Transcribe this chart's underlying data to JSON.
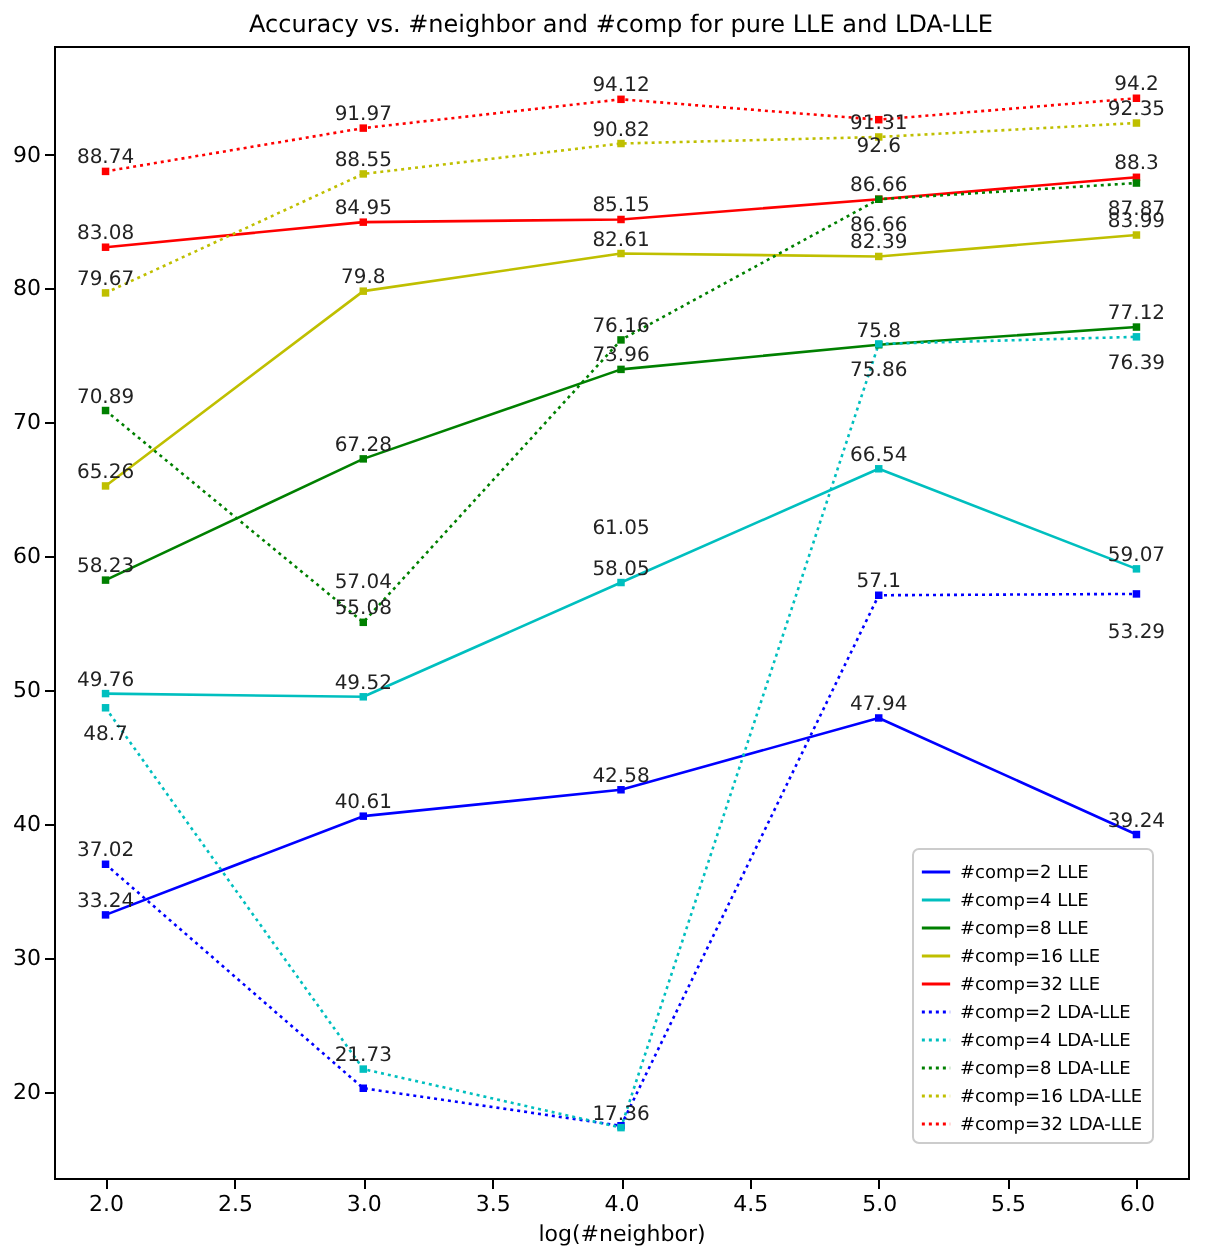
{
  "chart_data": {
    "type": "line",
    "title": "Accuracy vs. #neighbor and #comp for pure LLE and LDA-LLE",
    "xlabel": "log(#neighbor)",
    "x": [
      2,
      3,
      4,
      5,
      6
    ],
    "series": [
      {
        "name": "#comp=2 LLE",
        "color": "#0000ff",
        "line_style": "solid",
        "values": [
          33.24,
          40.61,
          42.58,
          47.94,
          39.24
        ],
        "value_labels": [
          "33.24",
          "40.61",
          "42.58",
          "47.94",
          "39.24"
        ]
      },
      {
        "name": "#comp=4 LLE",
        "color": "#00bfbf",
        "line_style": "solid",
        "values": [
          49.76,
          49.52,
          58.05,
          66.54,
          59.07
        ],
        "value_labels": [
          "49.76",
          "49.52",
          "58.05",
          "66.54",
          "59.07"
        ]
      },
      {
        "name": "#comp=8 LLE",
        "color": "#008000",
        "line_style": "solid",
        "values": [
          58.23,
          67.28,
          73.96,
          75.8,
          77.12
        ],
        "value_labels": [
          "58.23",
          "67.28",
          "73.96",
          "75.8",
          "77.12"
        ]
      },
      {
        "name": "#comp=16 LLE",
        "color": "#bfbf00",
        "line_style": "solid",
        "values": [
          65.26,
          79.8,
          82.61,
          82.39,
          83.99
        ],
        "value_labels": [
          "65.26",
          "79.8",
          "82.61",
          "82.39",
          "83.99"
        ]
      },
      {
        "name": "#comp=32 LLE",
        "color": "#ff0000",
        "line_style": "solid",
        "values": [
          83.08,
          84.95,
          85.15,
          86.66,
          88.3
        ],
        "value_labels": [
          "83.08",
          "84.95",
          "85.15",
          "86.66",
          "88.3"
        ]
      },
      {
        "name": "#comp=2 LDA-LLE",
        "color": "#0000ff",
        "line_style": "dotted",
        "values": [
          37.02,
          20.3,
          17.5,
          57.1,
          57.2
        ],
        "value_labels": [
          "37.02",
          null,
          null,
          "57.1",
          null
        ]
      },
      {
        "name": "#comp=4 LDA-LLE",
        "color": "#00bfbf",
        "line_style": "dotted",
        "values": [
          48.7,
          21.73,
          17.36,
          75.86,
          76.39
        ],
        "value_labels": [
          "48.7",
          "21.73",
          "17.36",
          "75.86",
          "76.39"
        ]
      },
      {
        "name": "#comp=8 LDA-LLE",
        "color": "#008000",
        "line_style": "dotted",
        "values": [
          70.89,
          55.08,
          76.16,
          86.66,
          87.87
        ],
        "value_labels": [
          "70.89",
          "55.08",
          "76.16",
          "86.66",
          "87.87"
        ]
      },
      {
        "name": "#comp=16 LDA-LLE",
        "color": "#bfbf00",
        "line_style": "dotted",
        "values": [
          79.67,
          88.55,
          90.82,
          91.31,
          92.35
        ],
        "value_labels": [
          "79.67",
          "88.55",
          "90.82",
          "91.31",
          "92.35"
        ]
      },
      {
        "name": "#comp=32 LDA-LLE",
        "color": "#ff0000",
        "line_style": "dotted",
        "values": [
          88.74,
          91.97,
          94.12,
          92.6,
          94.2
        ],
        "value_labels": [
          "88.74",
          "91.97",
          "94.12",
          "92.6",
          "94.2"
        ]
      }
    ],
    "annotations": [
      "61.05",
      "57.04",
      "53.29"
    ],
    "xlim": [
      1.8,
      6.2
    ],
    "xticks": [
      {
        "value": 2,
        "label": "2.0"
      },
      {
        "value": 2.5,
        "label": "2.5"
      },
      {
        "value": 3,
        "label": "3.0"
      },
      {
        "value": 3.5,
        "label": "3.5"
      },
      {
        "value": 4,
        "label": "4.0"
      },
      {
        "value": 4.5,
        "label": "4.5"
      },
      {
        "value": 5,
        "label": "5.0"
      },
      {
        "value": 5.5,
        "label": "5.5"
      },
      {
        "value": 6,
        "label": "6.0"
      }
    ],
    "ylim": [
      13.6,
      98.1
    ],
    "yticks": [
      20,
      30,
      40,
      50,
      60,
      70,
      80,
      90
    ],
    "marker": "square",
    "legend": "bottom right"
  }
}
